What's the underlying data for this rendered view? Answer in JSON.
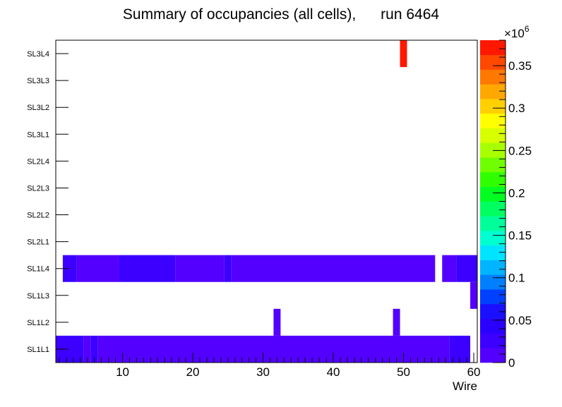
{
  "chart_data": {
    "type": "heatmap",
    "title": "Summary of occupancies (all cells),      run 6464",
    "xlabel": "Wire",
    "ylabel": "",
    "x_range": [
      0.5,
      60.5
    ],
    "x_ticks": [
      10,
      20,
      30,
      40,
      50,
      60
    ],
    "y_categories": [
      "SL1L1",
      "SL1L2",
      "SL1L3",
      "SL1L4",
      "SL2L1",
      "SL2L2",
      "SL2L3",
      "SL2L4",
      "SL3L1",
      "SL3L2",
      "SL3L3",
      "SL3L4"
    ],
    "z_range": [
      0,
      0.38
    ],
    "z_exponent_label": "×10",
    "z_exponent_power": "6",
    "z_ticks": [
      {
        "value": 0,
        "label": "0"
      },
      {
        "value": 0.05,
        "label": "0.05"
      },
      {
        "value": 0.1,
        "label": "0.1"
      },
      {
        "value": 0.15,
        "label": "0.15"
      },
      {
        "value": 0.2,
        "label": "0.2"
      },
      {
        "value": 0.25,
        "label": "0.25"
      },
      {
        "value": 0.3,
        "label": "0.3"
      },
      {
        "value": 0.35,
        "label": "0.35"
      }
    ],
    "palette": [
      "#5300ff",
      "#3b00ff",
      "#2a00ff",
      "#1a10ff",
      "#0040ff",
      "#0080ff",
      "#00b4ff",
      "#00e5ff",
      "#00ffd0",
      "#00ff9a",
      "#00ff60",
      "#00ff20",
      "#30ff00",
      "#70ff00",
      "#a8ff00",
      "#d8ff00",
      "#ffff00",
      "#ffd000",
      "#ffa800",
      "#ff7800",
      "#ff4800",
      "#ff1800"
    ],
    "cells": [
      {
        "layer": "SL1L1",
        "x_from": 1,
        "x_to": 4,
        "value": 0.028
      },
      {
        "layer": "SL1L1",
        "x_from": 5,
        "x_to": 5,
        "value": 0.016
      },
      {
        "layer": "SL1L1",
        "x_from": 6,
        "x_to": 6,
        "value": 0.028
      },
      {
        "layer": "SL1L1",
        "x_from": 7,
        "x_to": 56,
        "value": 0.016
      },
      {
        "layer": "SL1L1",
        "x_from": 57,
        "x_to": 59,
        "value": 0.028
      },
      {
        "layer": "SL1L2",
        "x_from": 32,
        "x_to": 32,
        "value": 0.016
      },
      {
        "layer": "SL1L2",
        "x_from": 49,
        "x_to": 49,
        "value": 0.016
      },
      {
        "layer": "SL1L3",
        "x_from": 60,
        "x_to": 60,
        "value": 0.016
      },
      {
        "layer": "SL1L4",
        "x_from": 2,
        "x_to": 3,
        "value": 0.028
      },
      {
        "layer": "SL1L4",
        "x_from": 4,
        "x_to": 9,
        "value": 0.016
      },
      {
        "layer": "SL1L4",
        "x_from": 10,
        "x_to": 17,
        "value": 0.028
      },
      {
        "layer": "SL1L4",
        "x_from": 18,
        "x_to": 24,
        "value": 0.016
      },
      {
        "layer": "SL1L4",
        "x_from": 25,
        "x_to": 25,
        "value": 0.028
      },
      {
        "layer": "SL1L4",
        "x_from": 26,
        "x_to": 54,
        "value": 0.016
      },
      {
        "layer": "SL1L4",
        "x_from": 56,
        "x_to": 57,
        "value": 0.016
      },
      {
        "layer": "SL1L4",
        "x_from": 58,
        "x_to": 60,
        "value": 0.028
      },
      {
        "layer": "SL3L4",
        "x_from": 50,
        "x_to": 50,
        "value": 0.37
      }
    ]
  }
}
